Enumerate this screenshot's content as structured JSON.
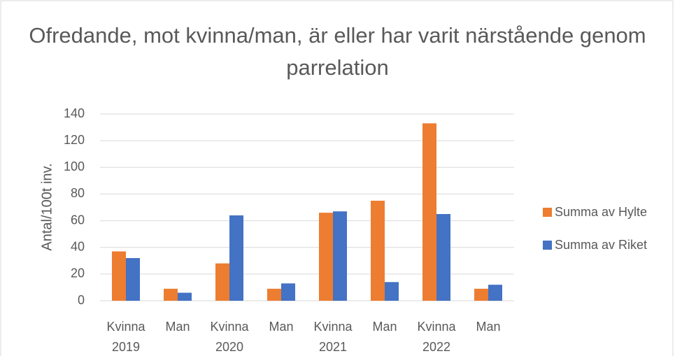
{
  "chart_data": {
    "type": "bar",
    "title": "Ofredande, mot kvinna/man, är eller har varit närstående genom parrelation",
    "y_label": "Antal/100t inv.",
    "categories": [
      "Kvinna",
      "Man",
      "Kvinna",
      "Man",
      "Kvinna",
      "Man",
      "Kvinna",
      "Man"
    ],
    "category_groups": [
      "2019",
      "2020",
      "2021",
      "2022"
    ],
    "series": [
      {
        "name": "Summa av Hylte",
        "color": "#ed7d31",
        "values": [
          37,
          9,
          28,
          9,
          66,
          75,
          133,
          9
        ]
      },
      {
        "name": "Summa av Riket",
        "color": "#4472c4",
        "values": [
          32,
          6,
          64,
          13,
          67,
          14,
          65,
          12
        ]
      }
    ],
    "ylim": [
      0,
      140
    ],
    "yticks": [
      0,
      20,
      40,
      60,
      80,
      100,
      120,
      140
    ],
    "grid": true,
    "legend": "right"
  }
}
